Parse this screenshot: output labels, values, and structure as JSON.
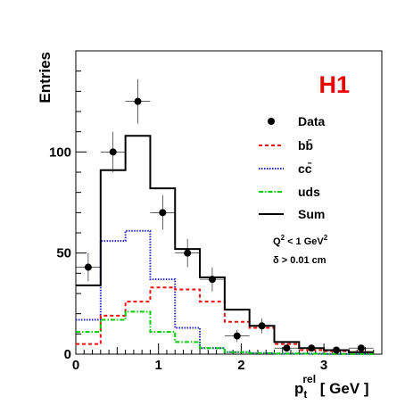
{
  "chart_data": {
    "type": "histogram",
    "experiment_label": "H1",
    "xlabel": {
      "main": "p",
      "sub": "t",
      "sup": "rel",
      "unit": " [ GeV ]"
    },
    "ylabel": "Entries",
    "xlim": [
      0,
      3.7
    ],
    "ylim": [
      0,
      150
    ],
    "x_ticks": [
      0,
      1,
      2,
      3
    ],
    "y_ticks": [
      0,
      50,
      100
    ],
    "bin_edges": [
      0,
      0.3,
      0.6,
      0.9,
      1.2,
      1.5,
      1.8,
      2.1,
      2.4,
      2.7,
      3.0,
      3.3,
      3.6
    ],
    "data": {
      "name": "Data",
      "x": [
        0.15,
        0.45,
        0.75,
        1.05,
        1.35,
        1.65,
        1.95,
        2.25,
        2.55,
        2.85,
        3.15,
        3.45
      ],
      "y": [
        43,
        100,
        125,
        70,
        50,
        37,
        9,
        14,
        3,
        3,
        2,
        3
      ],
      "yerr": [
        7,
        10,
        11,
        8.5,
        7,
        6,
        3,
        3.7,
        1.7,
        1.7,
        1.4,
        1.7
      ]
    },
    "series": [
      {
        "name": "Sum",
        "color": "#000000",
        "dash": "solid",
        "values": [
          34,
          91,
          108,
          82,
          52,
          38,
          22,
          14,
          6,
          3,
          2,
          1
        ]
      },
      {
        "name": "cc̄",
        "color": "#2222cc",
        "dash": "dotted",
        "values": [
          17,
          56,
          61,
          37,
          13,
          3,
          1,
          0.5,
          0.3,
          0.2,
          0.1,
          0.1
        ]
      },
      {
        "name": "bb̄",
        "color": "#ee1111",
        "dash": "dashed",
        "values": [
          5,
          19,
          26,
          33,
          32,
          26,
          16,
          13,
          5,
          2,
          1.5,
          1
        ]
      },
      {
        "name": "uds",
        "color": "#00cc00",
        "dash": "dashdot",
        "values": [
          11,
          17,
          21,
          11,
          6,
          3,
          1,
          0.5,
          0.3,
          0.2,
          0.1,
          0.1
        ]
      }
    ],
    "legend": [
      "Data",
      "bb̄",
      "cc̄",
      "uds",
      "Sum"
    ],
    "annotations": [
      {
        "id": "q2",
        "base": "Q",
        "sup": "2",
        "rest": " < 1 GeV",
        "sup2": "2"
      },
      {
        "id": "delta",
        "text": "δ > 0.01 cm"
      }
    ]
  }
}
